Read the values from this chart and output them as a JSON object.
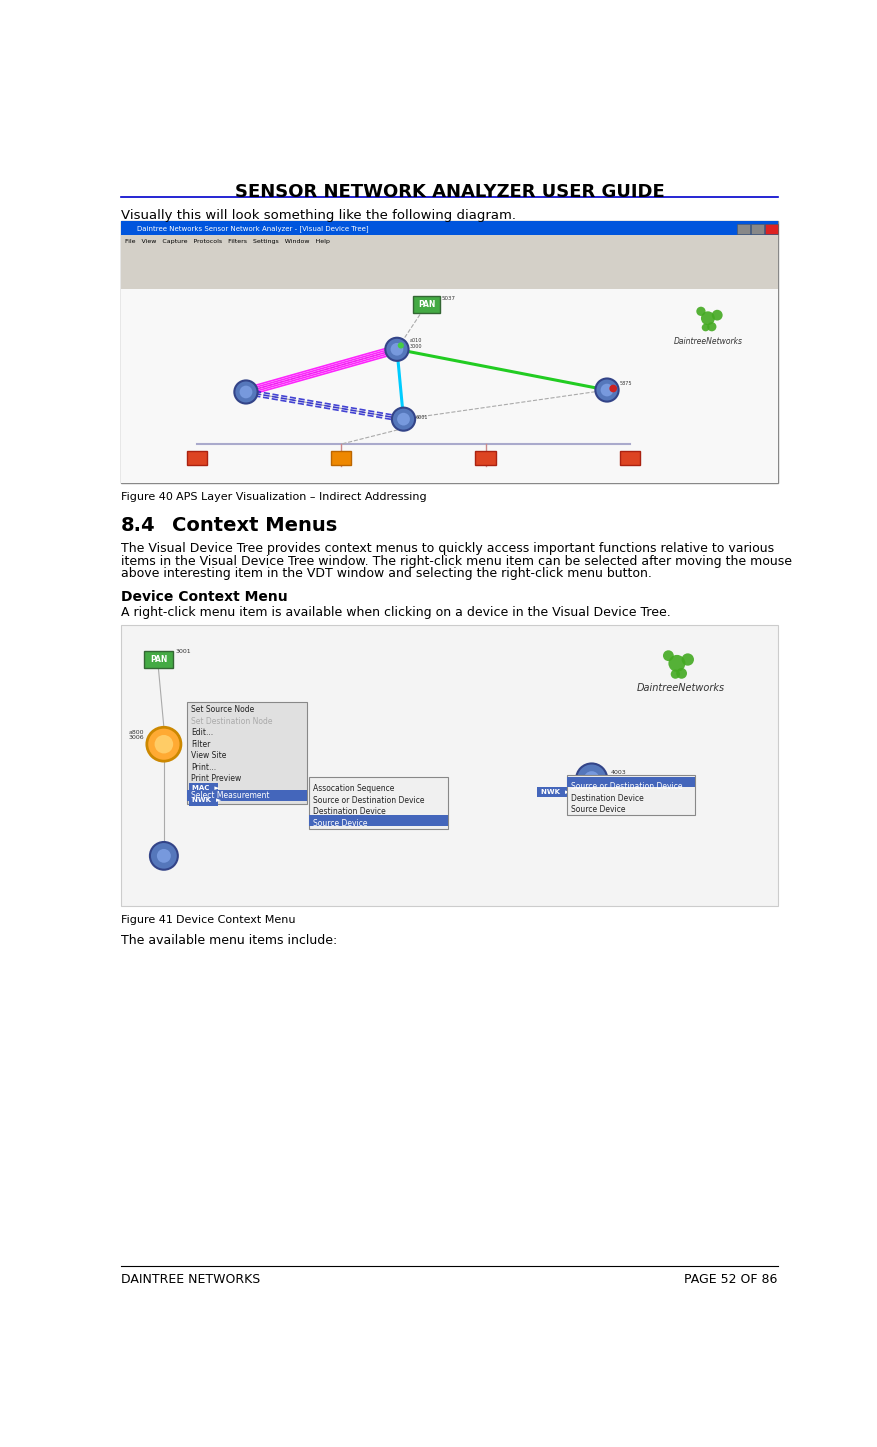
{
  "title": "SENSOR NETWORK ANALYZER USER GUIDE",
  "footer_left": "DAINTREE NETWORKS",
  "footer_right": "PAGE 52 OF 86",
  "intro_text": "Visually this will look something like the following diagram.",
  "figure40_caption_num": "Figure 40",
  "figure40_caption_text": "APS Layer Visualization – Indirect Addressing",
  "section_heading": "8.4",
  "section_heading2": "Context Menus",
  "section_body1": "The Visual Device Tree provides context menus to quickly access important functions relative to various",
  "section_body2": "items in the Visual Device Tree window. The right-click menu item can be selected after moving the mouse",
  "section_body3": "above interesting item in the VDT window and selecting the right-click menu button.",
  "device_context_heading": "Device Context Menu",
  "device_context_body": "A right-click menu item is available when clicking on a device in the Visual Device Tree.",
  "figure41_caption_num": "Figure 41",
  "figure41_caption_text": "Device Context Menu",
  "available_text": "The available menu items include:",
  "bg_color": "#ffffff",
  "title_color": "#000000",
  "header_line_color": "#0000cc",
  "win_title_bar": "#0055cc",
  "win_toolbar": "#d4d0c8",
  "win_content": "#ffffff",
  "node_fill": "#5577bb",
  "node_edge": "#334488"
}
